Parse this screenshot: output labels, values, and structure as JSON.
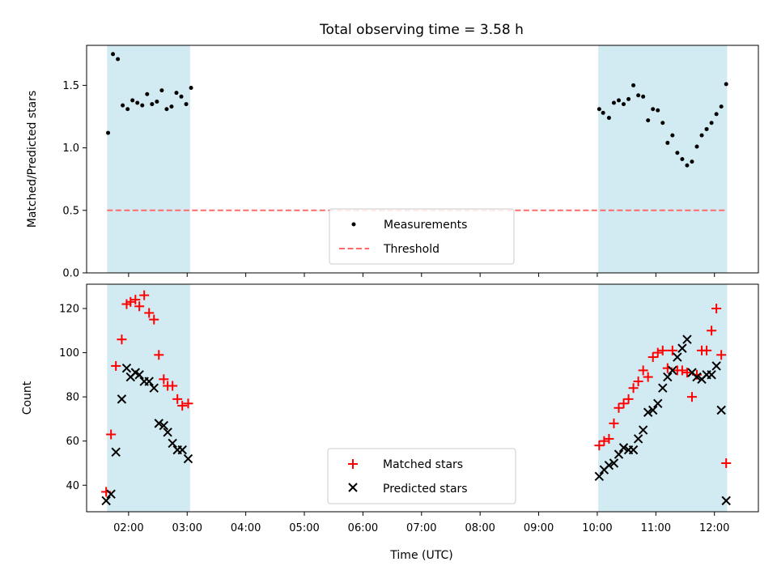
{
  "title": "Total observing time = 3.58 h",
  "colors": {
    "span": "#add8e6",
    "measure": "#000000",
    "threshold": "#ff6b6b",
    "matched": "#ff0000",
    "predicted": "#000000"
  },
  "chart_data": [
    {
      "type": "scatter",
      "ylabel": "Matched/Predicted stars",
      "ylim": [
        0,
        1.82
      ],
      "yticks": [
        0.0,
        0.5,
        1.0,
        1.5
      ],
      "ytick_labels": [
        "0.0",
        "0.5",
        "1.0",
        "1.5"
      ],
      "xlim": [
        "01:17",
        "12:45"
      ],
      "xticks": [
        "02:00",
        "03:00",
        "04:00",
        "05:00",
        "06:00",
        "07:00",
        "08:00",
        "09:00",
        "10:00",
        "11:00",
        "12:00"
      ],
      "observing_windows": [
        [
          "01:38",
          "03:03"
        ],
        [
          "10:01",
          "12:13"
        ]
      ],
      "threshold": 0.5,
      "legend": {
        "placement": "lower center",
        "entries": [
          "Measurements",
          "Threshold"
        ]
      },
      "series": [
        {
          "name": "Measurements",
          "marker": "dot",
          "x": [
            "01:39",
            "01:44",
            "01:49",
            "01:54",
            "01:59",
            "02:04",
            "02:09",
            "02:14",
            "02:19",
            "02:24",
            "02:29",
            "02:34",
            "02:39",
            "02:44",
            "02:49",
            "02:54",
            "02:59",
            "03:04",
            "10:02",
            "10:06",
            "10:12",
            "10:17",
            "10:22",
            "10:27",
            "10:32",
            "10:37",
            "10:42",
            "10:47",
            "10:52",
            "10:57",
            "11:02",
            "11:07",
            "11:12",
            "11:17",
            "11:22",
            "11:27",
            "11:32",
            "11:37",
            "11:42",
            "11:47",
            "11:52",
            "11:57",
            "12:02",
            "12:07",
            "12:12"
          ],
          "y": [
            1.12,
            1.75,
            1.71,
            1.34,
            1.31,
            1.38,
            1.36,
            1.34,
            1.43,
            1.35,
            1.37,
            1.46,
            1.31,
            1.33,
            1.44,
            1.41,
            1.35,
            1.48,
            1.31,
            1.28,
            1.24,
            1.36,
            1.38,
            1.35,
            1.39,
            1.5,
            1.42,
            1.41,
            1.22,
            1.31,
            1.3,
            1.2,
            1.04,
            1.1,
            0.96,
            0.91,
            0.86,
            0.89,
            1.01,
            1.1,
            1.15,
            1.2,
            1.27,
            1.33,
            1.51
          ]
        },
        {
          "name": "Threshold",
          "style": "dashed",
          "y": 0.5
        }
      ]
    },
    {
      "type": "scatter",
      "ylabel": "Count",
      "xlabel": "Time (UTC)",
      "ylim": [
        28,
        131
      ],
      "yticks": [
        40,
        60,
        80,
        100,
        120
      ],
      "ytick_labels": [
        "40",
        "60",
        "80",
        "100",
        "120"
      ],
      "xlim": [
        "01:17",
        "12:45"
      ],
      "xticks": [
        "02:00",
        "03:00",
        "04:00",
        "05:00",
        "06:00",
        "07:00",
        "08:00",
        "09:00",
        "10:00",
        "11:00",
        "12:00"
      ],
      "xtick_labels": [
        "02:00",
        "03:00",
        "04:00",
        "05:00",
        "06:00",
        "07:00",
        "08:00",
        "09:00",
        "10:00",
        "11:00",
        "12:00"
      ],
      "observing_windows": [
        [
          "01:38",
          "03:03"
        ],
        [
          "10:01",
          "12:13"
        ]
      ],
      "legend": {
        "placement": "lower center",
        "entries": [
          "Matched stars",
          "Predicted stars"
        ]
      },
      "series": [
        {
          "name": "Matched stars",
          "marker": "plus",
          "x": [
            "01:37",
            "01:42",
            "01:47",
            "01:53",
            "01:58",
            "02:02",
            "02:07",
            "02:11",
            "02:16",
            "02:21",
            "02:26",
            "02:31",
            "02:36",
            "02:40",
            "02:45",
            "02:50",
            "02:55",
            "03:01",
            "10:02",
            "10:07",
            "10:12",
            "10:17",
            "10:22",
            "10:27",
            "10:32",
            "10:37",
            "10:42",
            "10:47",
            "10:52",
            "10:57",
            "11:02",
            "11:07",
            "11:12",
            "11:17",
            "11:22",
            "11:27",
            "11:32",
            "11:37",
            "11:42",
            "11:47",
            "11:52",
            "11:57",
            "12:02",
            "12:07",
            "12:12"
          ],
          "y": [
            37,
            63,
            94,
            106,
            122,
            123,
            124,
            121,
            126,
            118,
            115,
            99,
            88,
            85,
            85,
            79,
            76,
            77,
            58,
            60,
            61,
            68,
            75,
            77,
            79,
            84,
            87,
            92,
            89,
            98,
            100,
            101,
            93,
            101,
            92,
            92,
            91,
            80,
            90,
            101,
            101,
            110,
            120,
            99,
            50
          ]
        },
        {
          "name": "Predicted stars",
          "marker": "x",
          "x": [
            "01:37",
            "01:42",
            "01:47",
            "01:53",
            "01:58",
            "02:02",
            "02:07",
            "02:11",
            "02:16",
            "02:21",
            "02:26",
            "02:31",
            "02:36",
            "02:40",
            "02:45",
            "02:50",
            "02:55",
            "03:01",
            "10:02",
            "10:07",
            "10:12",
            "10:17",
            "10:22",
            "10:27",
            "10:32",
            "10:37",
            "10:42",
            "10:47",
            "10:52",
            "10:57",
            "11:02",
            "11:07",
            "11:12",
            "11:17",
            "11:22",
            "11:27",
            "11:32",
            "11:37",
            "11:42",
            "11:47",
            "11:52",
            "11:57",
            "12:02",
            "12:07",
            "12:12"
          ],
          "y": [
            33,
            36,
            55,
            79,
            93,
            89,
            91,
            90,
            87,
            87,
            84,
            68,
            67,
            64,
            59,
            56,
            56,
            52,
            44,
            47,
            49,
            50,
            54,
            57,
            56,
            56,
            61,
            65,
            73,
            74,
            77,
            84,
            89,
            92,
            98,
            102,
            106,
            91,
            89,
            88,
            90,
            90,
            94,
            74,
            33
          ]
        }
      ]
    }
  ]
}
